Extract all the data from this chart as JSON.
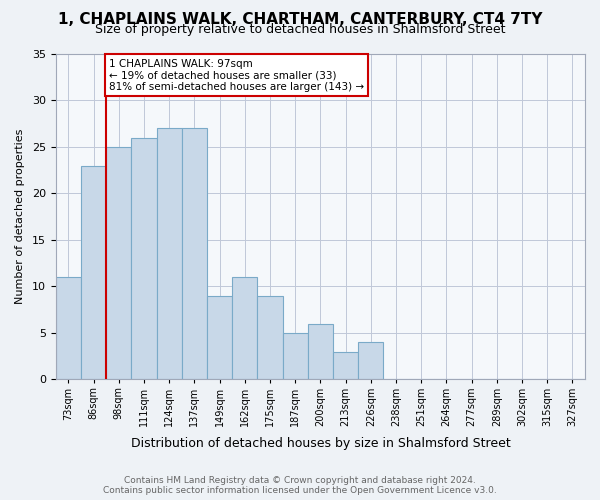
{
  "title": "1, CHAPLAINS WALK, CHARTHAM, CANTERBURY, CT4 7TY",
  "subtitle": "Size of property relative to detached houses in Shalmsford Street",
  "xlabel": "Distribution of detached houses by size in Shalmsford Street",
  "ylabel": "Number of detached properties",
  "bin_labels": [
    "73sqm",
    "86sqm",
    "98sqm",
    "111sqm",
    "124sqm",
    "137sqm",
    "149sqm",
    "162sqm",
    "175sqm",
    "187sqm",
    "200sqm",
    "213sqm",
    "226sqm",
    "238sqm",
    "251sqm",
    "264sqm",
    "277sqm",
    "289sqm",
    "302sqm",
    "315sqm",
    "327sqm"
  ],
  "bar_values": [
    11,
    23,
    25,
    26,
    27,
    27,
    9,
    11,
    9,
    5,
    6,
    3,
    4,
    0,
    0,
    0,
    0,
    0,
    0,
    0,
    0
  ],
  "bar_color": "#c8d8e8",
  "bar_edge_color": "#7aaac8",
  "vline_x_index": 2,
  "vline_color": "#cc0000",
  "annotation_text": "1 CHAPLAINS WALK: 97sqm\n← 19% of detached houses are smaller (33)\n81% of semi-detached houses are larger (143) →",
  "annotation_box_color": "#ffffff",
  "annotation_box_edge": "#cc0000",
  "ylim": [
    0,
    35
  ],
  "yticks": [
    0,
    5,
    10,
    15,
    20,
    25,
    30,
    35
  ],
  "footer": "Contains HM Land Registry data © Crown copyright and database right 2024.\nContains public sector information licensed under the Open Government Licence v3.0.",
  "bg_color": "#eef2f6",
  "plot_bg_color": "#f5f8fb",
  "grid_color": "#c0c8d8"
}
